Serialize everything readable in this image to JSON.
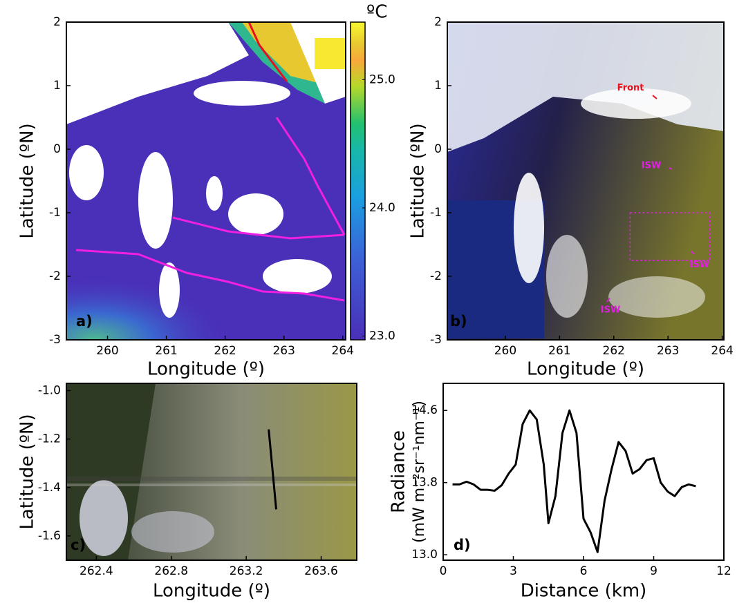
{
  "chart_data": [
    {
      "type": "image",
      "panel_label": "a)",
      "xlabel": "Longitude (º)",
      "ylabel": "Latitude (ºN)",
      "xlim": [
        259.3,
        264.05
      ],
      "xticks": [
        260,
        261,
        262,
        263,
        264
      ],
      "ylim": [
        -3,
        2
      ],
      "yticks": [
        -3,
        -2,
        -1,
        0,
        1,
        2
      ],
      "colorbar": {
        "label": "ºC",
        "clim": [
          22.97,
          25.45
        ],
        "ticks": [
          {
            "value": 23,
            "label": "23.0"
          },
          {
            "value": 24,
            "label": "24.0"
          },
          {
            "value": 25,
            "label": "25.0"
          }
        ]
      }
    },
    {
      "type": "image",
      "panel_label": "b)",
      "xlabel": "Longitude (º)",
      "ylabel": "Latitude (ºN)",
      "xlim": [
        258.93,
        264.03
      ],
      "xticks": [
        260,
        261,
        262,
        263,
        264
      ],
      "ylim": [
        -3,
        2
      ],
      "yticks": [
        -3,
        -2,
        -1,
        0,
        1,
        2
      ],
      "annotations": [
        {
          "text": "Front",
          "color": "#e8101c",
          "x": 262.31,
          "y": 0.96
        },
        {
          "text": "ISW",
          "color": "#e020e0",
          "x": 262.69,
          "y": -0.26
        },
        {
          "text": "ISW",
          "color": "#e020e0",
          "x": 263.58,
          "y": -1.82
        },
        {
          "text": "ISW",
          "color": "#e020e0",
          "x": 261.94,
          "y": -2.53
        }
      ],
      "box": {
        "x": [
          262.3,
          263.77
        ],
        "y": [
          -1.0,
          -1.75
        ],
        "color": "#e020e0"
      }
    },
    {
      "type": "image",
      "panel_label": "c)",
      "xlabel": "Longitude (º)",
      "ylabel": "Latitude (ºN)",
      "xlim": [
        262.24,
        263.79
      ],
      "xticks": [
        262.4,
        262.8,
        263.2,
        263.6
      ],
      "ylim": [
        -1.7,
        -0.97
      ],
      "yticks": [
        {
          "value": -1.0,
          "label": "-1.0"
        },
        -1.2,
        -1.4,
        -1.6
      ],
      "transect": {
        "x": [
          263.32,
          263.36
        ],
        "y": [
          -1.16,
          -1.49
        ]
      }
    },
    {
      "type": "line",
      "panel_label": "d)",
      "xlabel": "Distance (km)",
      "ylabel": "Radiance",
      "ylabel_units": "(mW m⁻²sr⁻¹nm⁻¹)",
      "x": [
        0.4,
        0.7,
        1.0,
        1.3,
        1.6,
        1.9,
        2.2,
        2.5,
        2.8,
        3.1,
        3.4,
        3.7,
        4.0,
        4.3,
        4.5,
        4.8,
        5.1,
        5.4,
        5.7,
        6.0,
        6.3,
        6.6,
        6.9,
        7.2,
        7.5,
        7.8,
        8.1,
        8.4,
        8.7,
        9.0,
        9.3,
        9.6,
        9.9,
        10.2,
        10.5,
        10.8
      ],
      "values": [
        13.78,
        13.78,
        13.81,
        13.78,
        13.72,
        13.72,
        13.71,
        13.77,
        13.9,
        14.0,
        14.45,
        14.6,
        14.5,
        14.0,
        13.35,
        13.65,
        14.35,
        14.6,
        14.35,
        13.4,
        13.25,
        13.03,
        13.6,
        13.95,
        14.25,
        14.15,
        13.9,
        13.95,
        14.05,
        14.07,
        13.8,
        13.7,
        13.65,
        13.75,
        13.78,
        13.76
      ],
      "color": "#000000",
      "xlim": [
        0,
        12
      ],
      "xticks": [
        0,
        3,
        6,
        9,
        12
      ],
      "ylim": [
        12.94,
        14.9
      ],
      "yticks": [
        {
          "value": 13.0,
          "label": "13.0"
        },
        13.8,
        14.6
      ]
    }
  ]
}
